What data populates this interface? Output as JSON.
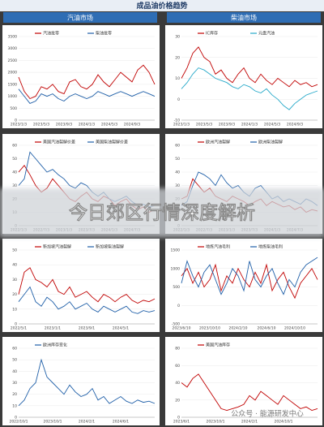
{
  "header": {
    "title": "成品油价格趋势",
    "left": "汽油市场",
    "right": "柴油市场"
  },
  "overlay": {
    "title": "今日郊区行情深度解析"
  },
  "watermark": "公众号 · 能源研发中心",
  "chart_data": [
    {
      "type": "line",
      "ylim": [
        0,
        3500
      ],
      "yticks": [
        0,
        500,
        1000,
        1500,
        2000,
        2500,
        3000,
        3500
      ],
      "categories": [
        "2023/1/3",
        null,
        null,
        null,
        "2023/5/3",
        null,
        null,
        null,
        "2023/9/3",
        null,
        null,
        null,
        "2024/1/3",
        null,
        null,
        null,
        "2024/5/3",
        null,
        null,
        null,
        "2024/9/3",
        null,
        null,
        null,
        null
      ],
      "series": [
        {
          "name": "汽油批零",
          "color": "#c00000",
          "values": [
            1800,
            1200,
            900,
            1000,
            1400,
            1300,
            1500,
            1200,
            1100,
            1600,
            1700,
            1400,
            1300,
            1500,
            1900,
            1600,
            1400,
            1700,
            2000,
            1800,
            1600,
            2100,
            2300,
            2000,
            1500
          ]
        },
        {
          "name": "柴油批零",
          "color": "#1f5fa8",
          "values": [
            1300,
            1000,
            700,
            800,
            1100,
            1000,
            1100,
            900,
            800,
            1000,
            1100,
            1000,
            900,
            1000,
            1200,
            1100,
            1000,
            1100,
            1200,
            1100,
            1000,
            1100,
            1200,
            1100,
            1000
          ]
        }
      ]
    },
    {
      "type": "line",
      "ylim": [
        -10,
        30
      ],
      "yticks": [
        -10,
        0,
        10,
        20,
        30
      ],
      "categories": [
        "2023/1/3",
        null,
        null,
        null,
        "2023/5/3",
        null,
        null,
        null,
        "2023/9/3",
        null,
        null,
        null,
        "2024/1/3",
        null,
        null,
        null,
        "2024/5/3",
        null,
        null,
        null,
        "2024/9/3",
        null,
        null,
        null,
        null
      ],
      "series": [
        {
          "name": "IC库存",
          "color": "#c00000",
          "values": [
            10,
            15,
            22,
            25,
            20,
            18,
            12,
            14,
            10,
            8,
            12,
            15,
            10,
            8,
            12,
            9,
            7,
            10,
            8,
            6,
            9,
            7,
            8,
            6,
            7
          ]
        },
        {
          "name": "元盘汽油",
          "color": "#27a9c9",
          "values": [
            5,
            8,
            12,
            15,
            14,
            12,
            10,
            9,
            8,
            6,
            5,
            7,
            6,
            4,
            3,
            5,
            2,
            0,
            -3,
            -5,
            -2,
            0,
            2,
            3,
            4
          ]
        }
      ]
    },
    {
      "type": "line",
      "ylim": [
        0,
        60
      ],
      "yticks": [
        0,
        10,
        20,
        30,
        40,
        50,
        60
      ],
      "categories": [
        "2022/1/3",
        null,
        null,
        null,
        "2022/7/3",
        null,
        null,
        null,
        "2023/1/3",
        null,
        null,
        null,
        "2023/7/3",
        null,
        null,
        null,
        "2024/1/3",
        null,
        null,
        null,
        "2024/7/3",
        null,
        null,
        null,
        null
      ],
      "series": [
        {
          "name": "美国汽油裂解价差",
          "color": "#c00000",
          "values": [
            40,
            45,
            38,
            30,
            25,
            28,
            35,
            30,
            25,
            20,
            18,
            22,
            25,
            20,
            18,
            22,
            20,
            15,
            18,
            20,
            15,
            12,
            14,
            10,
            12
          ]
        },
        {
          "name": "美国柴油裂解价差",
          "color": "#1f5fa8",
          "values": [
            30,
            35,
            55,
            50,
            45,
            40,
            42,
            38,
            35,
            30,
            28,
            32,
            30,
            25,
            22,
            25,
            20,
            18,
            20,
            22,
            18,
            15,
            16,
            14,
            15
          ]
        }
      ]
    },
    {
      "type": "line",
      "ylim": [
        0,
        60
      ],
      "yticks": [
        0,
        10,
        20,
        30,
        40,
        50,
        60
      ],
      "categories": [
        "2022/1/3",
        null,
        null,
        null,
        "2022/7/3",
        null,
        null,
        null,
        "2023/1/3",
        null,
        null,
        null,
        "2023/7/3",
        null,
        null,
        null,
        "2024/1/3",
        null,
        null,
        null,
        "2024/7/3",
        null,
        null,
        null,
        null
      ],
      "series": [
        {
          "name": "欧洲汽油裂解",
          "color": "#c00000",
          "values": [
            20,
            22,
            35,
            30,
            25,
            28,
            22,
            20,
            18,
            22,
            20,
            18,
            15,
            18,
            20,
            15,
            18,
            16,
            14,
            15,
            12,
            14,
            10,
            12,
            11
          ]
        },
        {
          "name": "欧洲柴油裂解",
          "color": "#1f5fa8",
          "values": [
            15,
            18,
            30,
            40,
            38,
            35,
            30,
            38,
            32,
            28,
            30,
            25,
            22,
            28,
            30,
            25,
            20,
            22,
            18,
            20,
            18,
            16,
            20,
            18,
            15
          ]
        }
      ]
    },
    {
      "type": "line",
      "ylim": [
        0,
        50
      ],
      "yticks": [
        0,
        10,
        20,
        30,
        40,
        50
      ],
      "categories": [
        "2022/5/1",
        null,
        null,
        null,
        null,
        null,
        "2023/1/1",
        null,
        null,
        null,
        null,
        null,
        "2023/9/1",
        null,
        null,
        null,
        null,
        null,
        "2024/5/1",
        null,
        null,
        null,
        null,
        null,
        null
      ],
      "series": [
        {
          "name": "新加坡汽油裂解",
          "color": "#c00000",
          "values": [
            20,
            35,
            38,
            30,
            28,
            25,
            30,
            22,
            20,
            25,
            18,
            20,
            22,
            18,
            15,
            20,
            18,
            15,
            18,
            20,
            16,
            14,
            16,
            15,
            17
          ]
        },
        {
          "name": "新加坡柴油裂解",
          "color": "#1f5fa8",
          "values": [
            15,
            20,
            25,
            15,
            12,
            18,
            15,
            10,
            12,
            15,
            10,
            12,
            14,
            10,
            8,
            12,
            10,
            8,
            10,
            12,
            8,
            7,
            9,
            8,
            9
          ]
        }
      ]
    },
    {
      "type": "line",
      "ylim": [
        -500,
        1500
      ],
      "yticks": [
        -500,
        0,
        500,
        1000,
        1500
      ],
      "categories": [
        "2023/6/10",
        null,
        null,
        null,
        null,
        "2023/10/10",
        null,
        null,
        null,
        null,
        "2024/2/10",
        null,
        null,
        null,
        null,
        "2024/6/10",
        null,
        null,
        null,
        null,
        "2024/10/10",
        null,
        null,
        null,
        null
      ],
      "series": [
        {
          "name": "地炼汽油毛利",
          "color": "#c00000",
          "values": [
            800,
            1000,
            600,
            900,
            500,
            700,
            1100,
            400,
            800,
            600,
            1000,
            700,
            500,
            900,
            600,
            1100,
            400,
            700,
            900,
            500,
            200,
            600,
            800,
            1000,
            700
          ]
        },
        {
          "name": "地炼柴油毛利",
          "color": "#1f5fa8",
          "values": [
            600,
            1200,
            800,
            500,
            900,
            1100,
            700,
            300,
            600,
            1000,
            800,
            400,
            1200,
            700,
            500,
            800,
            1000,
            600,
            300,
            700,
            500,
            900,
            1100,
            1200,
            1300
          ]
        }
      ]
    },
    {
      "type": "line",
      "ylim": [
        0,
        60
      ],
      "yticks": [
        0,
        10,
        20,
        30,
        40,
        50,
        60
      ],
      "categories": [
        "2022/10/1",
        null,
        null,
        null,
        null,
        null,
        "2023/10/1",
        null,
        null,
        null,
        null,
        null,
        "2024/2/1",
        null,
        null,
        null,
        null,
        null,
        "2024/6/1",
        null,
        null,
        null,
        null,
        null,
        null
      ],
      "series": [
        {
          "name": "欧洲库存变化",
          "color": "#1f5fa8",
          "values": [
            10,
            15,
            25,
            30,
            50,
            35,
            30,
            25,
            20,
            28,
            22,
            18,
            20,
            25,
            15,
            18,
            12,
            15,
            18,
            14,
            12,
            15,
            13,
            14,
            12
          ]
        }
      ]
    },
    {
      "type": "line",
      "ylim": [
        0,
        80
      ],
      "yticks": [
        0,
        20,
        40,
        60,
        80
      ],
      "categories": [
        "2023/6/1",
        null,
        null,
        null,
        null,
        null,
        "2023/10/1",
        null,
        null,
        null,
        null,
        null,
        "2024/2/1",
        null,
        null,
        null,
        null,
        null,
        "2024/10/1",
        null,
        null,
        null,
        null,
        null,
        null
      ],
      "series": [
        {
          "name": "美国汽油库存",
          "color": "#c00000",
          "values": [
            40,
            35,
            45,
            50,
            40,
            30,
            20,
            10,
            8,
            10,
            12,
            15,
            25,
            20,
            30,
            25,
            20,
            15,
            25,
            20,
            15,
            10,
            12,
            8,
            10
          ]
        }
      ]
    }
  ]
}
